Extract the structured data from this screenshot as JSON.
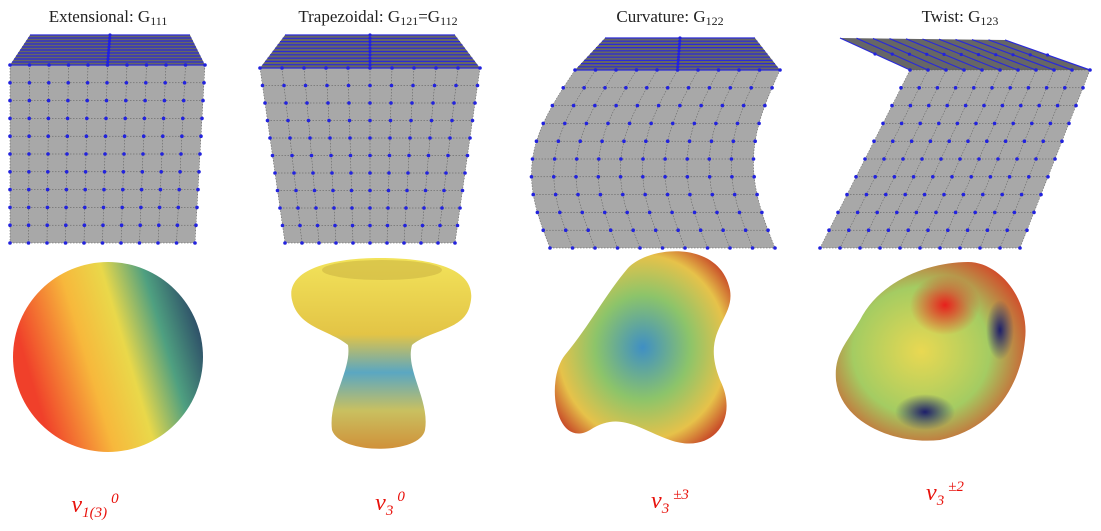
{
  "panels": [
    {
      "title": [
        {
          "text": "Extensional: G"
        },
        {
          "sub": "111"
        }
      ],
      "label": {
        "base": "ν",
        "sub": "1(3)",
        "sup": "0"
      }
    },
    {
      "title": [
        {
          "text": "Trapezoidal: G"
        },
        {
          "sub": "121"
        },
        {
          "text": "=G"
        },
        {
          "sub": "112"
        }
      ],
      "label": {
        "base": "ν",
        "sub": "3",
        "sup": "0"
      }
    },
    {
      "title": [
        {
          "text": "Curvature: G"
        },
        {
          "sub": "122"
        }
      ],
      "label": {
        "base": "ν",
        "sub": "3",
        "sup": "±3"
      }
    },
    {
      "title": [
        {
          "text": "Twist: G"
        },
        {
          "sub": "123"
        }
      ],
      "label": {
        "base": "ν",
        "sub": "3",
        "sup": "±2"
      }
    }
  ]
}
